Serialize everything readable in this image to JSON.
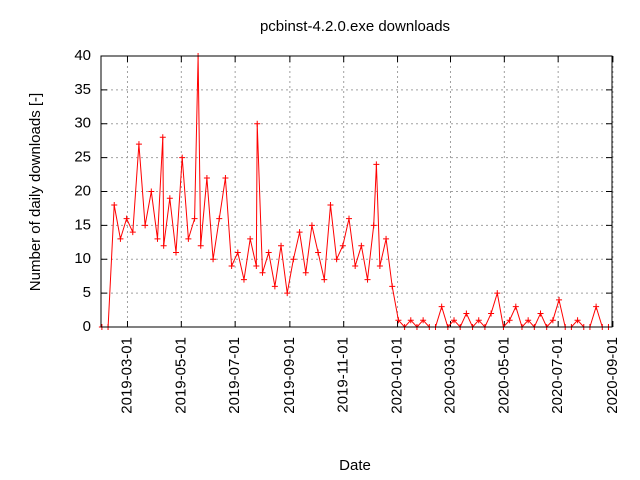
{
  "chart_data": {
    "type": "line",
    "title": "pcbinst-4.2.0.exe downloads",
    "x_label": "Date",
    "y_label": "Number of daily downloads [-]",
    "color": "#ff0000",
    "grid": true,
    "marker": "+",
    "xlim": [
      "2019-01-30",
      "2020-08-31"
    ],
    "xticks": [
      "2019-03-01",
      "2019-05-01",
      "2019-07-01",
      "2019-09-01",
      "2019-11-01",
      "2020-01-01",
      "2020-03-01",
      "2020-05-01",
      "2020-07-01",
      "2020-09-01"
    ],
    "ylim": [
      0,
      40
    ],
    "yticks": [
      0,
      5,
      10,
      15,
      20,
      25,
      30,
      35,
      40
    ],
    "x": [
      "2019-01-31",
      "2019-02-07",
      "2019-02-14",
      "2019-02-21",
      "2019-02-28",
      "2019-03-07",
      "2019-03-14",
      "2019-03-21",
      "2019-03-28",
      "2019-04-04",
      "2019-04-10",
      "2019-04-11",
      "2019-04-18",
      "2019-04-25",
      "2019-05-02",
      "2019-05-09",
      "2019-05-16",
      "2019-05-20",
      "2019-05-23",
      "2019-05-30",
      "2019-06-06",
      "2019-06-13",
      "2019-06-20",
      "2019-06-27",
      "2019-07-04",
      "2019-07-11",
      "2019-07-18",
      "2019-07-25",
      "2019-07-26",
      "2019-08-01",
      "2019-08-08",
      "2019-08-15",
      "2019-08-22",
      "2019-08-29",
      "2019-09-05",
      "2019-09-12",
      "2019-09-19",
      "2019-09-26",
      "2019-10-03",
      "2019-10-10",
      "2019-10-17",
      "2019-10-24",
      "2019-10-31",
      "2019-11-07",
      "2019-11-14",
      "2019-11-21",
      "2019-11-28",
      "2019-12-05",
      "2019-12-08",
      "2019-12-12",
      "2019-12-19",
      "2019-12-26",
      "2020-01-02",
      "2020-01-09",
      "2020-01-16",
      "2020-01-23",
      "2020-01-30",
      "2020-02-06",
      "2020-02-13",
      "2020-02-20",
      "2020-02-27",
      "2020-03-05",
      "2020-03-12",
      "2020-03-19",
      "2020-03-26",
      "2020-04-02",
      "2020-04-09",
      "2020-04-16",
      "2020-04-23",
      "2020-04-30",
      "2020-05-07",
      "2020-05-14",
      "2020-05-21",
      "2020-05-28",
      "2020-06-04",
      "2020-06-11",
      "2020-06-18",
      "2020-06-25",
      "2020-07-02",
      "2020-07-09",
      "2020-07-16",
      "2020-07-23",
      "2020-07-30",
      "2020-08-06",
      "2020-08-13",
      "2020-08-20",
      "2020-08-27"
    ],
    "values": [
      0,
      0,
      18,
      13,
      16,
      14,
      27,
      15,
      20,
      13,
      28,
      12,
      19,
      11,
      25,
      13,
      16,
      40,
      12,
      22,
      10,
      16,
      22,
      9,
      11,
      7,
      13,
      9,
      30,
      8,
      11,
      6,
      12,
      5,
      10,
      14,
      8,
      15,
      11,
      7,
      18,
      10,
      12,
      16,
      9,
      12,
      7,
      15,
      24,
      9,
      13,
      6,
      1,
      0,
      1,
      0,
      1,
      0,
      0,
      3,
      0,
      1,
      0,
      2,
      0,
      1,
      0,
      2,
      5,
      0,
      1,
      3,
      0,
      1,
      0,
      2,
      0,
      1,
      4,
      0,
      0,
      1,
      0,
      0,
      3,
      0,
      0
    ]
  }
}
